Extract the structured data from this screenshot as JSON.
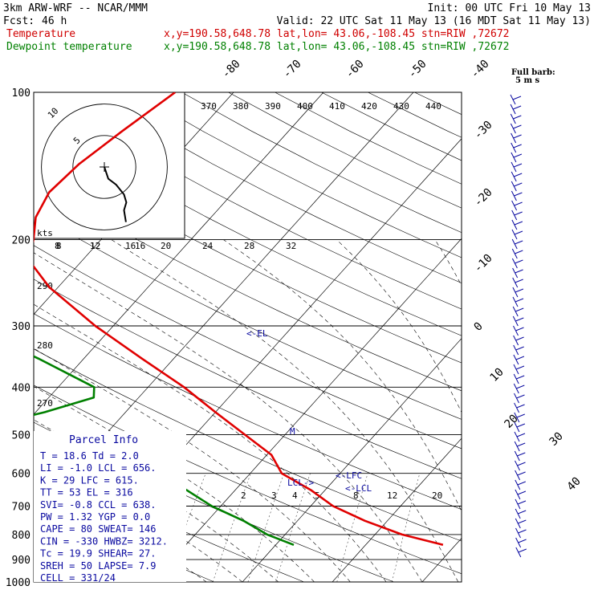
{
  "header": {
    "line1_left": "3km ARW-WRF -- NCAR/MMM",
    "line1_right": "Init: 00 UTC Fri 10 May 13",
    "fcst_label": "Fcst:",
    "fcst_value": "46 h",
    "valid": "Valid: 22 UTC Sat 11 May 13 (16 MDT Sat 11 May 13)",
    "temperature_label": "Temperature",
    "dewpoint_label": "Dewpoint temperature",
    "location": "x,y=190.58,648.78   lat,lon= 43.06,-108.45   stn=RIW ,72672",
    "colors": {
      "temperature": "#e00000",
      "dewpoint": "#008000",
      "parcel": "#0a0aa0"
    }
  },
  "wind_legend": {
    "line1": "Full barb:",
    "line2": "5 m s"
  },
  "hodograph": {
    "kts_label": "kts",
    "ring_labels": [
      "8",
      "12",
      "16"
    ],
    "ring_radii_kts": [
      8,
      16
    ]
  },
  "parcel_labels": {
    "el": "<-EL",
    "lfc": "<-LFC",
    "lcl_left": "LCL->",
    "lcl_right": "<-LCL",
    "mark": "M"
  },
  "parcel_info": {
    "title": "Parcel Info",
    "rows": [
      "T  =   18.6  Td  =   2.0",
      "LI =   -1.0  LCL =  656.",
      "K  =     29  LFC =  615.",
      "TT =     53  EL  =   316",
      "SVI=   -0.8  CCL =  638.",
      "PW =   1.32  YGP =   0.0",
      "CAPE =   80  SWEAT=  146",
      "CIN =  -330  HWBZ= 3212.",
      "Tc =   19.9  SHEAR=  27.",
      "SREH =   50  LAPSE=  7.9",
      "CELL = 331/24"
    ]
  },
  "chart_data": {
    "type": "line",
    "pressure_levels_hpa": [
      100,
      200,
      300,
      400,
      500,
      600,
      700,
      800,
      900,
      1000
    ],
    "pressure_labels": [
      "100",
      "200",
      "300",
      "400",
      "500",
      "600",
      "700",
      "800",
      "900",
      "1000"
    ],
    "isotherm_labels_c": [
      "-80",
      "-70",
      "-60",
      "-50",
      "-40",
      "-30",
      "-20",
      "-10",
      "0",
      "10",
      "20",
      "30",
      "40"
    ],
    "theta_labels_k": [
      "370",
      "380",
      "390",
      "400",
      "410",
      "420",
      "430",
      "440"
    ],
    "theta_side_labels_k": [
      "290",
      "280",
      "270"
    ],
    "mixing_ratio_upper_labels": [
      "8",
      "12",
      "16",
      "20",
      "24",
      "28",
      "32"
    ],
    "mixing_ratio_lower_labels": [
      "2",
      "3",
      "4",
      "5",
      "8",
      "12",
      "20"
    ],
    "series": [
      {
        "name": "Temperature",
        "points": [
          {
            "p": 100,
            "t": -56.5
          },
          {
            "p": 120,
            "t": -58.5
          },
          {
            "p": 140,
            "t": -60.0
          },
          {
            "p": 160,
            "t": -60.5
          },
          {
            "p": 180,
            "t": -59.5
          },
          {
            "p": 200,
            "t": -57.5
          },
          {
            "p": 220,
            "t": -56.0
          },
          {
            "p": 250,
            "t": -51.0
          },
          {
            "p": 300,
            "t": -42.0
          },
          {
            "p": 350,
            "t": -33.5
          },
          {
            "p": 400,
            "t": -26.0
          },
          {
            "p": 450,
            "t": -20.0
          },
          {
            "p": 500,
            "t": -14.5
          },
          {
            "p": 550,
            "t": -9.5
          },
          {
            "p": 600,
            "t": -6.5
          },
          {
            "p": 650,
            "t": -1.5
          },
          {
            "p": 700,
            "t": 2.5
          },
          {
            "p": 750,
            "t": 7.5
          },
          {
            "p": 800,
            "t": 13.0
          },
          {
            "p": 840,
            "t": 18.6
          }
        ]
      },
      {
        "name": "Dewpoint temperature",
        "points": [
          {
            "p": 100,
            "t": -85.0
          },
          {
            "p": 120,
            "t": -82.0
          },
          {
            "p": 140,
            "t": -78.0
          },
          {
            "p": 160,
            "t": -75.0
          },
          {
            "p": 180,
            "t": -76.0
          },
          {
            "p": 200,
            "t": -77.0
          },
          {
            "p": 220,
            "t": -74.0
          },
          {
            "p": 250,
            "t": -67.0
          },
          {
            "p": 300,
            "t": -56.0
          },
          {
            "p": 350,
            "t": -45.0
          },
          {
            "p": 400,
            "t": -36.0
          },
          {
            "p": 420,
            "t": -35.0
          },
          {
            "p": 450,
            "t": -39.0
          },
          {
            "p": 500,
            "t": -47.0
          },
          {
            "p": 550,
            "t": -27.0
          },
          {
            "p": 580,
            "t": -21.0
          },
          {
            "p": 600,
            "t": -20.0
          },
          {
            "p": 700,
            "t": -11.0
          },
          {
            "p": 750,
            "t": -6.0
          },
          {
            "p": 800,
            "t": -2.0
          },
          {
            "p": 840,
            "t": 2.0
          }
        ]
      }
    ],
    "hodograph_points_kts": [
      {
        "u": 5.5,
        "v": -14.0
      },
      {
        "u": 5.0,
        "v": -11.0
      },
      {
        "u": 5.6,
        "v": -9.0
      },
      {
        "u": 5.0,
        "v": -7.0
      },
      {
        "u": 3.0,
        "v": -4.5
      },
      {
        "u": 1.0,
        "v": -3.0
      },
      {
        "u": 0.0,
        "v": 0.0
      }
    ],
    "parcel_levels_hpa": {
      "lcl": 656,
      "lfc": 615,
      "el": 316,
      "ccl": 638
    }
  }
}
